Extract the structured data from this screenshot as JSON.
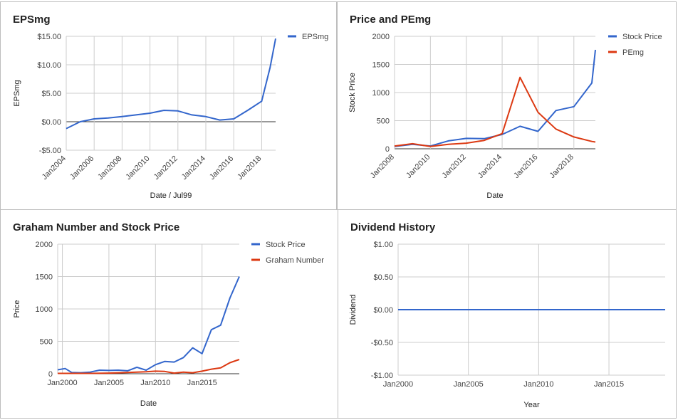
{
  "chart_data": [
    {
      "type": "line",
      "title": "EPSmg",
      "xlabel": "Date / Jul99",
      "ylabel": "EPSmg",
      "ylim": [
        -5,
        15
      ],
      "yticks": [
        -5,
        0,
        5,
        10,
        15
      ],
      "ytick_labels": [
        "-$5.00",
        "$0.00",
        "$5.00",
        "$10.00",
        "$15.00"
      ],
      "xlim": [
        2004,
        2019
      ],
      "xticks": [
        2004,
        2006,
        2008,
        2010,
        2012,
        2014,
        2016,
        2018
      ],
      "xtick_labels": [
        "Jan2004",
        "Jan2006",
        "Jan2008",
        "Jan2010",
        "Jan2012",
        "Jan2014",
        "Jan2016",
        "Jan2018"
      ],
      "xtick_rotate": true,
      "legend": "right",
      "series": [
        {
          "name": "EPSmg",
          "color": "#3366cc",
          "x": [
            2004,
            2005,
            2006,
            2007,
            2008,
            2009,
            2010,
            2011,
            2012,
            2013,
            2014,
            2015,
            2016,
            2017,
            2018,
            2018.6,
            2019
          ],
          "y": [
            -1.2,
            0.0,
            0.5,
            0.65,
            0.9,
            1.2,
            1.5,
            2.0,
            1.9,
            1.2,
            0.9,
            0.3,
            0.5,
            2.0,
            3.6,
            9.5,
            14.6
          ]
        }
      ]
    },
    {
      "type": "line",
      "title": "Price and PEmg",
      "xlabel": "Date",
      "ylabel": "Stock Price",
      "ylim": [
        0,
        2000
      ],
      "yticks": [
        0,
        500,
        1000,
        1500,
        2000
      ],
      "ytick_labels": [
        "0",
        "500",
        "1000",
        "1500",
        "2000"
      ],
      "xlim": [
        2008,
        2019.2
      ],
      "xticks": [
        2008,
        2010,
        2012,
        2014,
        2016,
        2018
      ],
      "xtick_labels": [
        "Jan2008",
        "Jan2010",
        "Jan2012",
        "Jan2014",
        "Jan2016",
        "Jan2018"
      ],
      "xtick_rotate": true,
      "legend": "right",
      "series": [
        {
          "name": "Stock Price",
          "color": "#3366cc",
          "x": [
            2008,
            2009,
            2010,
            2011,
            2012,
            2013,
            2014,
            2015,
            2016,
            2017,
            2018,
            2019,
            2019.2
          ],
          "y": [
            40,
            80,
            50,
            140,
            185,
            180,
            255,
            400,
            310,
            680,
            750,
            1170,
            1760
          ]
        },
        {
          "name": "PEmg",
          "color": "#dc3912",
          "x": [
            2008,
            2009,
            2010,
            2011,
            2012,
            2013,
            2014,
            2015,
            2016,
            2017,
            2018,
            2019,
            2019.2
          ],
          "y": [
            50,
            90,
            40,
            80,
            100,
            150,
            270,
            1270,
            650,
            350,
            210,
            130,
            120
          ]
        }
      ]
    },
    {
      "type": "line",
      "title": "Graham Number and Stock Price",
      "xlabel": "Date",
      "ylabel": "Price",
      "ylim": [
        0,
        2000
      ],
      "yticks": [
        0,
        500,
        1000,
        1500,
        2000
      ],
      "ytick_labels": [
        "0",
        "500",
        "1000",
        "1500",
        "2000"
      ],
      "xlim": [
        1999.5,
        2019
      ],
      "xticks": [
        2000,
        2005,
        2010,
        2015
      ],
      "xtick_labels": [
        "Jan2000",
        "Jan2005",
        "Jan2010",
        "Jan2015"
      ],
      "xtick_rotate": false,
      "legend": "right",
      "series": [
        {
          "name": "Stock Price",
          "color": "#3366cc",
          "x": [
            1999.5,
            2000.3,
            2001,
            2002,
            2003,
            2004,
            2005,
            2006,
            2007,
            2008,
            2009,
            2010,
            2011,
            2012,
            2013,
            2014,
            2015,
            2016,
            2017,
            2018,
            2019
          ],
          "y": [
            60,
            80,
            20,
            15,
            25,
            55,
            50,
            55,
            45,
            100,
            55,
            140,
            190,
            180,
            250,
            400,
            310,
            680,
            750,
            1170,
            1500
          ]
        },
        {
          "name": "Graham Number",
          "color": "#dc3912",
          "x": [
            1999.5,
            2001,
            2003,
            2005,
            2007,
            2009,
            2010,
            2011,
            2012,
            2013,
            2014,
            2015,
            2016,
            2017,
            2018,
            2019
          ],
          "y": [
            5,
            5,
            5,
            10,
            20,
            30,
            40,
            35,
            10,
            25,
            15,
            40,
            70,
            90,
            170,
            220
          ]
        }
      ]
    },
    {
      "type": "line",
      "title": "Dividend History",
      "xlabel": "Year",
      "ylabel": "Dividend",
      "ylim": [
        -1,
        1
      ],
      "yticks": [
        -1,
        -0.5,
        0,
        0.5,
        1
      ],
      "ytick_labels": [
        "-$1.00",
        "-$0.50",
        "$0.00",
        "$0.50",
        "$1.00"
      ],
      "xlim": [
        2000,
        2019
      ],
      "xticks": [
        2000,
        2005,
        2010,
        2015
      ],
      "xtick_labels": [
        "Jan2000",
        "Jan2005",
        "Jan2010",
        "Jan2015"
      ],
      "xtick_rotate": false,
      "legend": "none",
      "series": [
        {
          "name": "",
          "color": "#3366cc",
          "x": [
            2000,
            2001,
            2005,
            2010,
            2015,
            2018,
            2019
          ],
          "y": [
            0,
            0,
            0,
            0,
            0,
            0,
            0
          ]
        }
      ]
    }
  ]
}
